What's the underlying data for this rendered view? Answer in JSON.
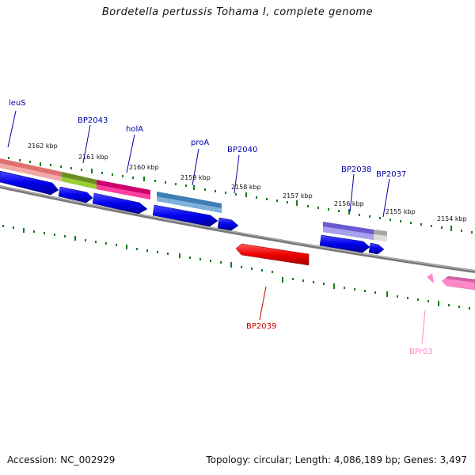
{
  "title": "Bordetella pertussis Tohama I, complete genome",
  "footer": {
    "accession": "Accession: NC_002929",
    "summary": "Topology: circular; Length: 4,086,189 bp; Genes: 3,497"
  },
  "scale_labels": [
    "2162 kbp",
    "2161 kbp",
    "2160 kbp",
    "2159 kbp",
    "2158 kbp",
    "2157 kbp",
    "2156 kbp",
    "2155 kbp",
    "2154 kbp"
  ],
  "gene_labels": [
    "leuS",
    "BP2043",
    "holA",
    "proA",
    "BP2040",
    "BP2038",
    "BP2037",
    "BP2039",
    "BPr03"
  ],
  "colors": {
    "backbone": "#888888",
    "ticks": "#1a7a1a",
    "cds": "#0000ee",
    "label_blue": "#0000aa",
    "leuS": "#e07070",
    "BP2043": "#6b8e23",
    "holA": "#e6007a",
    "proA": "#3f7fb5",
    "BP2038": "#6a5acd",
    "BP2037": "#c0c0c0",
    "BP2039": "#ee0000",
    "BPr03": "#ff88c8"
  }
}
